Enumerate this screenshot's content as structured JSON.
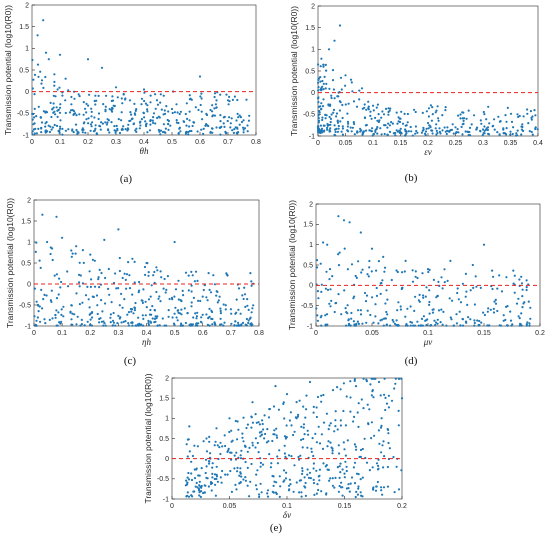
{
  "panels": [
    {
      "label": "(a)",
      "chart_data": {
        "type": "scatter",
        "xlabel": "θh",
        "ylabel": "Transmission potential (log10(R0))",
        "xlim": [
          0,
          0.8
        ],
        "ylim": [
          -1,
          2
        ],
        "xticks": [
          "0",
          "0.1",
          "0.2",
          "0.3",
          "0.4",
          "0.5",
          "0.6",
          "0.7",
          "0.8"
        ],
        "yticks": [
          "-1",
          "-0.5",
          "0",
          "0.5",
          "1",
          "1.5",
          "2"
        ],
        "reference_line": 0,
        "seed": 11,
        "n": 420,
        "x": [
          0.02,
          0.04,
          0.05,
          0.06,
          0.08,
          0.1,
          0.12,
          0.15,
          0.2,
          0.25,
          0.3,
          0.35,
          0.4,
          0.45,
          0.5,
          0.6,
          0.7,
          0.75
        ],
        "y": [
          1.3,
          1.65,
          0.9,
          0.75,
          0.4,
          0.85,
          0.3,
          0.0,
          0.75,
          0.55,
          0.1,
          -0.2,
          0.05,
          -0.3,
          -0.4,
          0.35,
          -0.2,
          -0.7
        ]
      }
    },
    {
      "label": "(b)",
      "chart_data": {
        "type": "scatter",
        "xlabel": "εv",
        "ylabel": "Transmission potential (log10(R0))",
        "xlim": [
          0,
          0.4
        ],
        "ylim": [
          -1,
          2
        ],
        "xticks": [
          "0",
          "0.05",
          "0.1",
          "0.15",
          "0.2",
          "0.25",
          "0.3",
          "0.35",
          "0.4"
        ],
        "yticks": [
          "-1",
          "-0.5",
          "0",
          "0.5",
          "1",
          "1.5",
          "2"
        ],
        "reference_line": 0,
        "seed": 23,
        "n": 420,
        "x": [
          0.01,
          0.02,
          0.03,
          0.04,
          0.05,
          0.06,
          0.08,
          0.1,
          0.12,
          0.15,
          0.2,
          0.25,
          0.3,
          0.35,
          0.39
        ],
        "y": [
          0.6,
          1.0,
          1.2,
          1.55,
          0.4,
          0.3,
          0.1,
          -0.3,
          -0.5,
          -0.6,
          -0.7,
          -0.8,
          -0.85,
          -0.9,
          -0.55
        ]
      }
    },
    {
      "label": "(c)",
      "chart_data": {
        "type": "scatter",
        "xlabel": "ηh",
        "ylabel": "Transmission potential (log10(R0))",
        "xlim": [
          0,
          0.8
        ],
        "ylim": [
          -1,
          2
        ],
        "xticks": [
          "0",
          "0.1",
          "0.2",
          "0.3",
          "0.4",
          "0.5",
          "0.6",
          "0.7",
          "0.8"
        ],
        "yticks": [
          "-1",
          "-0.5",
          "0",
          "0.5",
          "1",
          "1.5",
          "2"
        ],
        "reference_line": 0,
        "seed": 37,
        "n": 420,
        "x": [
          0.03,
          0.08,
          0.1,
          0.15,
          0.2,
          0.25,
          0.3,
          0.35,
          0.4,
          0.45,
          0.5,
          0.55,
          0.6,
          0.7,
          0.77
        ],
        "y": [
          1.65,
          1.6,
          1.1,
          0.9,
          0.7,
          1.05,
          1.3,
          0.6,
          0.5,
          0.3,
          1.0,
          0.2,
          -0.3,
          -0.6,
          -0.8
        ]
      }
    },
    {
      "label": "(d)",
      "chart_data": {
        "type": "scatter",
        "xlabel": "μv",
        "ylabel": "Transmission potential (log10(R0))",
        "xlim": [
          0,
          0.2
        ],
        "ylim": [
          -1,
          2
        ],
        "xticks": [
          "0",
          "0.05",
          "0.1",
          "0.15",
          "0.2"
        ],
        "yticks": [
          "-1",
          "-0.5",
          "0",
          "0.5",
          "1",
          "1.5",
          "2"
        ],
        "reference_line": 0,
        "seed": 53,
        "n": 320,
        "x": [
          0.01,
          0.02,
          0.025,
          0.03,
          0.04,
          0.05,
          0.06,
          0.08,
          0.1,
          0.12,
          0.14,
          0.15,
          0.17,
          0.19
        ],
        "y": [
          1.0,
          1.7,
          1.6,
          1.55,
          1.3,
          0.9,
          0.7,
          0.6,
          0.4,
          0.6,
          0.5,
          1.0,
          0.2,
          -0.4
        ]
      }
    },
    {
      "label": "(e)",
      "chart_data": {
        "type": "scatter",
        "xlabel": "δv",
        "ylabel": "Transmission potential (log10(R0))",
        "xlim": [
          0,
          0.2
        ],
        "ylim": [
          -1,
          2
        ],
        "xticks": [
          "0",
          "0.05",
          "0.1",
          "0.15",
          "0.2"
        ],
        "yticks": [
          "-1",
          "-0.5",
          "0",
          "0.5",
          "1",
          "1.5",
          "2"
        ],
        "reference_line": 0,
        "seed": 71,
        "n": 520,
        "x": [
          0.015,
          0.03,
          0.05,
          0.07,
          0.09,
          0.1,
          0.12,
          0.14,
          0.16,
          0.18,
          0.2
        ],
        "y": [
          0.8,
          0.5,
          1.0,
          1.4,
          1.8,
          1.6,
          1.9,
          1.7,
          1.8,
          1.9,
          1.5
        ]
      }
    }
  ]
}
